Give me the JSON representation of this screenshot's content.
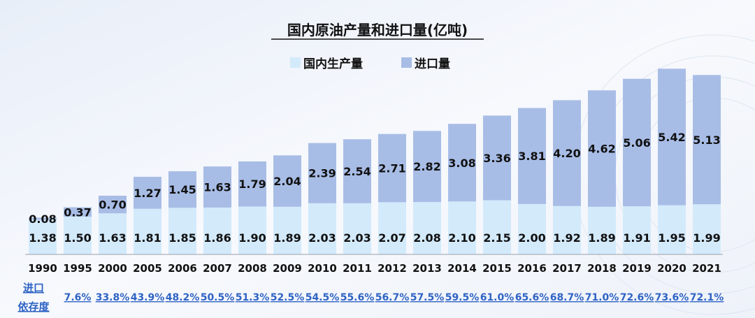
{
  "chart_data": {
    "type": "bar",
    "stacked": true,
    "title": "国内原油产量和进口量(亿吨)",
    "categories": [
      "1990",
      "1995",
      "2000",
      "2005",
      "2006",
      "2007",
      "2008",
      "2009",
      "2010",
      "2011",
      "2012",
      "2013",
      "2014",
      "2015",
      "2016",
      "2017",
      "2018",
      "2019",
      "2020",
      "2021"
    ],
    "series": [
      {
        "name": "国内生产量",
        "color": "#d3eafb",
        "values": [
          1.38,
          1.5,
          1.63,
          1.81,
          1.85,
          1.86,
          1.9,
          1.89,
          2.03,
          2.03,
          2.07,
          2.08,
          2.1,
          2.15,
          2.0,
          1.92,
          1.89,
          1.91,
          1.95,
          1.99
        ],
        "labels": [
          "1.38",
          "1.50",
          "1.63",
          "1.81",
          "1.85",
          "1.86",
          "1.90",
          "1.89",
          "2.03",
          "2.03",
          "2.07",
          "2.08",
          "2.10",
          "2.15",
          "2.00",
          "1.92",
          "1.89",
          "1.91",
          "1.95",
          "1.99"
        ]
      },
      {
        "name": "进口量",
        "color": "#a8bde6",
        "values": [
          0.08,
          0.37,
          0.7,
          1.27,
          1.45,
          1.63,
          1.79,
          2.04,
          2.39,
          2.54,
          2.71,
          2.82,
          3.08,
          3.36,
          3.81,
          4.2,
          4.62,
          5.06,
          5.42,
          5.13
        ],
        "labels": [
          "0.08",
          "0.37",
          "0.70",
          "1.27",
          "1.45",
          "1.63",
          "1.79",
          "2.04",
          "2.39",
          "2.54",
          "2.71",
          "2.82",
          "3.08",
          "3.36",
          "3.81",
          "4.20",
          "4.62",
          "5.06",
          "5.42",
          "5.13"
        ]
      }
    ],
    "ylim": [
      0,
      7.6
    ],
    "grid": false,
    "legend_position": "top-center",
    "dependence": {
      "label_line1": "进口",
      "label_line2": "依存度",
      "values": [
        "",
        "7.6%",
        "33.8%",
        "43.9%",
        "48.2%",
        "50.5%",
        "51.3%",
        "52.5%",
        "54.5%",
        "55.6%",
        "56.7%",
        "57.5%",
        "59.5%",
        "61.0%",
        "65.6%",
        "68.7%",
        "71.0%",
        "72.6%",
        "73.6%",
        "72.1%"
      ]
    }
  }
}
